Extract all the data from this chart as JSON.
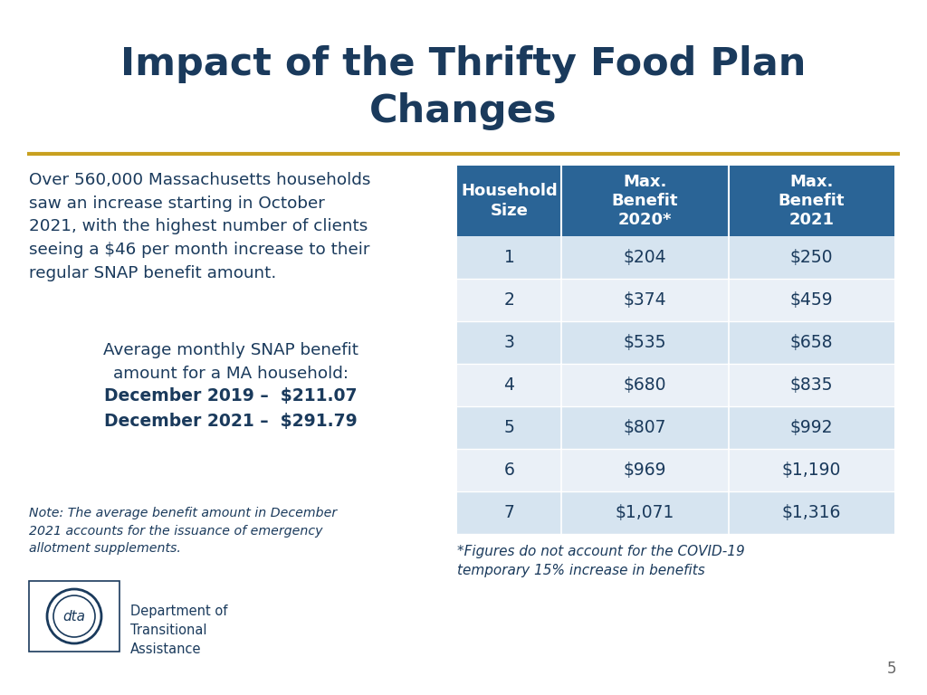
{
  "title_line1": "Impact of the Thrifty Food Plan",
  "title_line2": "Changes",
  "title_color": "#1a3a5c",
  "divider_color": "#c8a020",
  "left_text_intro": "Over 560,000 Massachusetts households\nsaw an increase starting in October\n2021, with the highest number of clients\nseeing a $46 per month increase to their\nregular SNAP benefit amount.",
  "left_text_center_normal": "Average monthly SNAP benefit\namount for a MA household:",
  "left_text_center_bold1": "December 2019 –  $211.07",
  "left_text_center_bold2": "December 2021 –  $291.79",
  "note_text": "Note: The average benefit amount in December\n2021 accounts for the issuance of emergency\nallotment supplements.",
  "footnote_text": "*Figures do not account for the COVID-19\ntemporary 15% increase in benefits",
  "table_header_bg": "#2a6496",
  "table_header_text": "#ffffff",
  "table_row_even_bg": "#d6e4f0",
  "table_row_odd_bg": "#eaf0f7",
  "table_text_color": "#1a3a5c",
  "table_headers": [
    "Household\nSize",
    "Max.\nBenefit\n2020*",
    "Max.\nBenefit\n2021"
  ],
  "table_rows": [
    [
      "1",
      "$204",
      "$250"
    ],
    [
      "2",
      "$374",
      "$459"
    ],
    [
      "3",
      "$535",
      "$658"
    ],
    [
      "4",
      "$680",
      "$835"
    ],
    [
      "5",
      "$807",
      "$992"
    ],
    [
      "6",
      "$969",
      "$1,190"
    ],
    [
      "7",
      "$1,071",
      "$1,316"
    ]
  ],
  "page_number": "5",
  "background_color": "#ffffff",
  "text_color": "#1a3a5c",
  "note_color": "#1a3a5c"
}
